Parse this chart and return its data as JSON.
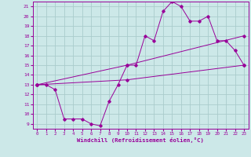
{
  "title": "",
  "xlabel": "Windchill (Refroidissement éolien,°C)",
  "bg_color": "#cce8e8",
  "line_color": "#990099",
  "grid_color": "#aacccc",
  "xlim": [
    -0.5,
    23.5
  ],
  "ylim": [
    8.5,
    21.5
  ],
  "xticks": [
    0,
    1,
    2,
    3,
    4,
    5,
    6,
    7,
    8,
    9,
    10,
    11,
    12,
    13,
    14,
    15,
    16,
    17,
    18,
    19,
    20,
    21,
    22,
    23
  ],
  "yticks": [
    9,
    10,
    11,
    12,
    13,
    14,
    15,
    16,
    17,
    18,
    19,
    20,
    21
  ],
  "line1_x": [
    0,
    1,
    2,
    3,
    4,
    5,
    6,
    7,
    8,
    9,
    10,
    11,
    12,
    13,
    14,
    15,
    16,
    17,
    18,
    19,
    20,
    21,
    22,
    23
  ],
  "line1_y": [
    13.0,
    13.0,
    12.5,
    9.5,
    9.5,
    9.5,
    9.0,
    8.8,
    11.3,
    13.0,
    15.0,
    15.0,
    18.0,
    17.5,
    20.5,
    21.5,
    21.0,
    19.5,
    19.5,
    20.0,
    17.5,
    17.5,
    16.5,
    15.0
  ],
  "line2_x": [
    0,
    10,
    23
  ],
  "line2_y": [
    13.0,
    15.0,
    18.0
  ],
  "line3_x": [
    0,
    10,
    23
  ],
  "line3_y": [
    13.0,
    13.5,
    15.0
  ]
}
